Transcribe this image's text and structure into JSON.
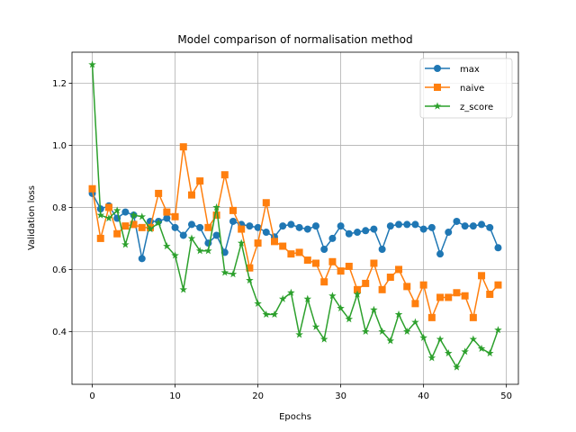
{
  "chart_data": {
    "type": "line",
    "title": "Model comparison of normalisation method",
    "xlabel": "Epochs",
    "ylabel": "Validation loss",
    "xlim": [
      -2.45,
      51.45
    ],
    "ylim": [
      0.23,
      1.3
    ],
    "xticks": [
      0,
      10,
      20,
      30,
      40,
      50
    ],
    "yticks": [
      0.4,
      0.6,
      0.8,
      1.0,
      1.2
    ],
    "xtick_labels": [
      "0",
      "10",
      "20",
      "30",
      "40",
      "50"
    ],
    "ytick_labels": [
      "0.4",
      "0.6",
      "0.8",
      "1.0",
      "1.2"
    ],
    "grid": true,
    "legend_position": "top-right",
    "x": [
      0,
      1,
      2,
      3,
      4,
      5,
      6,
      7,
      8,
      9,
      10,
      11,
      12,
      13,
      14,
      15,
      16,
      17,
      18,
      19,
      20,
      21,
      22,
      23,
      24,
      25,
      26,
      27,
      28,
      29,
      30,
      31,
      32,
      33,
      34,
      35,
      36,
      37,
      38,
      39,
      40,
      41,
      42,
      43,
      44,
      45,
      46,
      47,
      48,
      49
    ],
    "series": [
      {
        "name": "max",
        "color": "#1f77b4",
        "marker": "circle",
        "values": [
          0.845,
          0.795,
          0.805,
          0.765,
          0.785,
          0.775,
          0.635,
          0.755,
          0.755,
          0.765,
          0.735,
          0.71,
          0.745,
          0.735,
          0.685,
          0.71,
          0.655,
          0.755,
          0.745,
          0.74,
          0.735,
          0.72,
          0.705,
          0.74,
          0.745,
          0.735,
          0.73,
          0.74,
          0.665,
          0.7,
          0.74,
          0.715,
          0.72,
          0.725,
          0.73,
          0.665,
          0.74,
          0.745,
          0.745,
          0.745,
          0.73,
          0.735,
          0.65,
          0.72,
          0.755,
          0.74,
          0.74,
          0.745,
          0.735,
          0.67
        ]
      },
      {
        "name": "naive",
        "color": "#ff7f0e",
        "marker": "square",
        "values": [
          0.86,
          0.7,
          0.8,
          0.715,
          0.74,
          0.745,
          0.735,
          0.735,
          0.845,
          0.785,
          0.77,
          0.995,
          0.84,
          0.885,
          0.735,
          0.775,
          0.905,
          0.79,
          0.73,
          0.605,
          0.685,
          0.815,
          0.69,
          0.675,
          0.65,
          0.655,
          0.63,
          0.62,
          0.56,
          0.625,
          0.595,
          0.61,
          0.535,
          0.555,
          0.62,
          0.535,
          0.575,
          0.6,
          0.545,
          0.49,
          0.55,
          0.445,
          0.51,
          0.51,
          0.525,
          0.515,
          0.445,
          0.58,
          0.52,
          0.55
        ]
      },
      {
        "name": "z_score",
        "color": "#2ca02c",
        "marker": "star",
        "values": [
          1.26,
          0.775,
          0.765,
          0.79,
          0.68,
          0.775,
          0.77,
          0.73,
          0.75,
          0.675,
          0.645,
          0.535,
          0.7,
          0.66,
          0.66,
          0.8,
          0.59,
          0.585,
          0.685,
          0.565,
          0.49,
          0.455,
          0.455,
          0.505,
          0.525,
          0.39,
          0.505,
          0.415,
          0.375,
          0.515,
          0.475,
          0.44,
          0.52,
          0.4,
          0.47,
          0.4,
          0.37,
          0.455,
          0.4,
          0.43,
          0.38,
          0.315,
          0.375,
          0.33,
          0.285,
          0.335,
          0.375,
          0.345,
          0.33,
          0.405
        ]
      }
    ]
  }
}
